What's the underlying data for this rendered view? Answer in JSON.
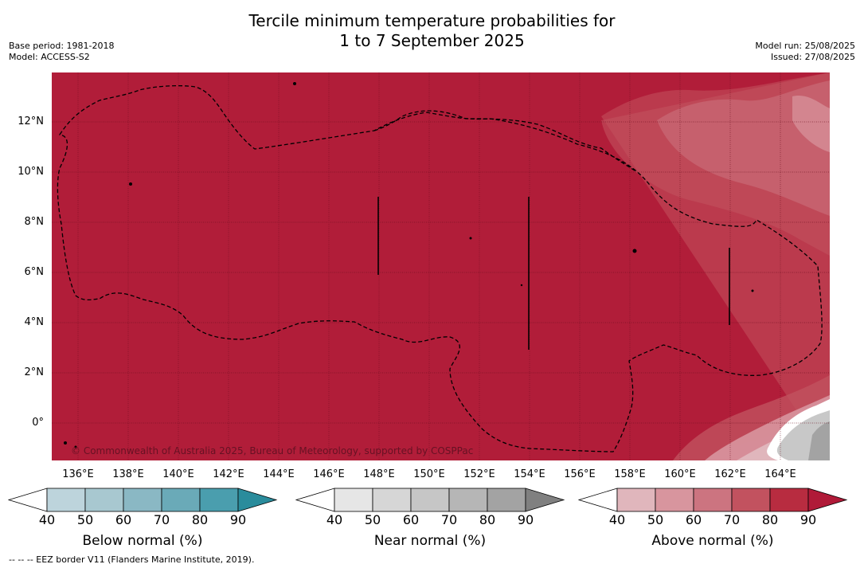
{
  "title_line1": "Tercile minimum temperature probabilities for",
  "title_line2": "1 to 7 September 2025",
  "meta_left": [
    "Base period: 1981-2018",
    "Model: ACCESS-S2"
  ],
  "meta_right": [
    "Model run: 25/08/2025",
    "Issued: 27/08/2025"
  ],
  "lat_labels": [
    "12°N",
    "10°N",
    "8°N",
    "6°N",
    "4°N",
    "2°N",
    "0°"
  ],
  "lon_labels": [
    "136°E",
    "138°E",
    "140°E",
    "142°E",
    "144°E",
    "146°E",
    "148°E",
    "150°E",
    "152°E",
    "154°E",
    "156°E",
    "158°E",
    "160°E",
    "162°E",
    "164°E"
  ],
  "copyright": "© Commonwealth of Australia 2025, Bureau of Meteorology, supported by COSPPac",
  "colorbars": [
    {
      "label": "Below normal (%)",
      "ticks": [
        "40",
        "50",
        "60",
        "70",
        "80",
        "90"
      ],
      "colors": [
        "#ffffff",
        "#bdd4dc",
        "#a8c8d0",
        "#8ab8c4",
        "#6aaab8",
        "#4a9eae",
        "#2a8c9c"
      ]
    },
    {
      "label": "Near normal (%)",
      "ticks": [
        "40",
        "50",
        "60",
        "70",
        "80",
        "90"
      ],
      "colors": [
        "#ffffff",
        "#e6e6e6",
        "#d6d6d6",
        "#c6c6c6",
        "#b6b6b6",
        "#a3a3a3",
        "#808080"
      ]
    },
    {
      "label": "Above normal (%)",
      "ticks": [
        "40",
        "50",
        "60",
        "70",
        "80",
        "90"
      ],
      "colors": [
        "#ffffff",
        "#e0b6bc",
        "#d8959e",
        "#cc7480",
        "#c2525f",
        "#b82c40",
        "#b01a38"
      ]
    }
  ],
  "footer": "-- -- -- EEZ border V11 (Flanders Marine Institute, 2019).",
  "map_colors": {
    "dominant": "#b11d39",
    "grid": "#6b0f1e",
    "eez": "#000000"
  }
}
